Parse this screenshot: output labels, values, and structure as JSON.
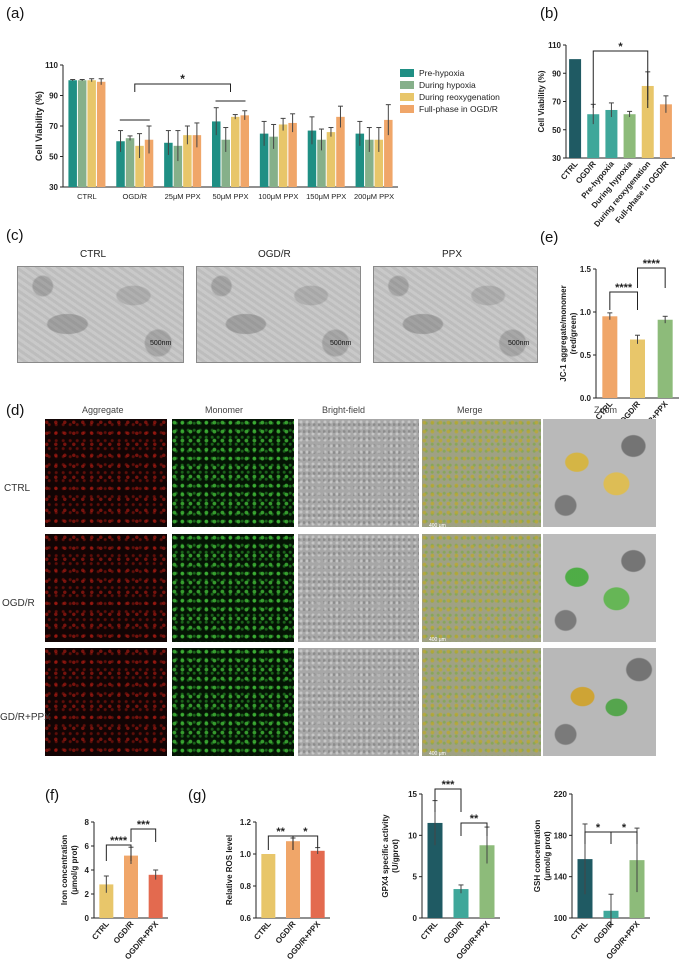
{
  "panel_labels": {
    "a": "(a)",
    "b": "(b)",
    "c": "(c)",
    "d": "(d)",
    "e": "(e)",
    "f": "(f)",
    "g": "(g)"
  },
  "colors": {
    "teal": "#1f8f84",
    "green": "#86b08a",
    "yellow": "#e8c66a",
    "orange": "#f0a669",
    "dark": "#1f5a63",
    "mid": "#3fa79a",
    "salmon": "#e36a4f",
    "lightgreen": "#8dbb7a"
  },
  "tem": {
    "labels": [
      "CTRL",
      "OGD/R",
      "PPX"
    ],
    "scale_bar": "500nm"
  },
  "fluorescence": {
    "columns": [
      "Aggregate",
      "Monomer",
      "Bright-field",
      "Merge",
      "Zoom"
    ],
    "rows": [
      "CTRL",
      "OGD/R",
      "OGD/R+PPX"
    ],
    "row_labels_visible": [
      "CTRL",
      "OGD/R",
      "GD/R+PPX"
    ],
    "scale_bar": "400 μm"
  },
  "chart_data": [
    {
      "id": "a",
      "type": "bar",
      "ylabel": "Cell Viability (%)",
      "ylim": [
        30,
        110
      ],
      "yticks": [
        30,
        50,
        70,
        90,
        110
      ],
      "categories": [
        "CTRL",
        "OGD/R",
        "25μM PPX",
        "50μM PPX",
        "100μM PPX",
        "150μM PPX",
        "200μM PPX"
      ],
      "series": [
        {
          "name": "Pre-hypoxia",
          "values": [
            100,
            60,
            59,
            73,
            65,
            67,
            65
          ],
          "errors": [
            0.5,
            7,
            8,
            9,
            8,
            9,
            8
          ]
        },
        {
          "name": "During hypoxia",
          "values": [
            100,
            62,
            57,
            61,
            63,
            61,
            61
          ],
          "errors": [
            0.5,
            1.5,
            10,
            8,
            8,
            7,
            8
          ]
        },
        {
          "name": "During reoxygenation",
          "values": [
            100,
            57,
            64,
            76,
            71,
            66,
            61
          ],
          "errors": [
            1,
            8,
            6,
            1.5,
            4,
            3,
            8
          ]
        },
        {
          "name": "Full-phase in OGD/R",
          "values": [
            99,
            61,
            64,
            77,
            72,
            76,
            74
          ],
          "errors": [
            2,
            9,
            8,
            3,
            6,
            7,
            10
          ]
        }
      ],
      "significance": [
        {
          "label": "*"
        }
      ]
    },
    {
      "id": "b",
      "type": "bar",
      "ylabel": "Cell Viability (%)",
      "ylim": [
        30,
        110
      ],
      "yticks": [
        30,
        50,
        70,
        90,
        110
      ],
      "categories": [
        "CTRL",
        "OGD/R",
        "Pre-hypoxia",
        "During hypoxia",
        "During reoxygenation",
        "Full-phase in OGD/R"
      ],
      "values": [
        100,
        61,
        64,
        61,
        81,
        68
      ],
      "errors": [
        0,
        7,
        5,
        2,
        10,
        6
      ],
      "significance": [
        {
          "label": "*"
        }
      ]
    },
    {
      "id": "e",
      "type": "bar",
      "ylabel": "JC-1 aggregate/monomer (red/green)",
      "ylim": [
        0,
        1.5
      ],
      "yticks": [
        0.0,
        0.5,
        1.0,
        1.5
      ],
      "categories": [
        "CTRL",
        "OGD/R",
        "OGD/R+PPX"
      ],
      "values": [
        0.95,
        0.68,
        0.91
      ],
      "errors": [
        0.04,
        0.05,
        0.04
      ],
      "significance": [
        {
          "label": "****"
        },
        {
          "label": "****"
        }
      ]
    },
    {
      "id": "f",
      "type": "bar",
      "ylabel": "Iron concentration (μmol/g prot)",
      "ylim": [
        0,
        8
      ],
      "yticks": [
        0,
        2,
        4,
        6,
        8
      ],
      "categories": [
        "CTRL",
        "OGD/R",
        "OGD/R+PPX"
      ],
      "values": [
        2.8,
        5.2,
        3.6
      ],
      "errors": [
        0.7,
        0.7,
        0.4
      ],
      "significance": [
        {
          "label": "****"
        },
        {
          "label": "***"
        }
      ]
    },
    {
      "id": "g1",
      "type": "bar",
      "ylabel": "Relative ROS level",
      "ylim": [
        0.6,
        1.2
      ],
      "yticks": [
        0.6,
        0.8,
        1.0,
        1.2
      ],
      "categories": [
        "CTRL",
        "OGD/R",
        "OGD/R+PPX"
      ],
      "values": [
        1.0,
        1.08,
        1.02
      ],
      "errors": [
        0,
        0.02,
        0.02
      ],
      "significance": [
        {
          "label": "**"
        },
        {
          "label": "*"
        }
      ]
    },
    {
      "id": "g2",
      "type": "bar",
      "ylabel": "GPX4 specific activity (U/gprot)",
      "ylim": [
        0,
        15
      ],
      "yticks": [
        0,
        5,
        10,
        15
      ],
      "categories": [
        "CTRL",
        "OGD/R",
        "OGD/R+PPX"
      ],
      "values": [
        11.5,
        3.5,
        8.8
      ],
      "errors": [
        2.7,
        0.5,
        2.2
      ],
      "significance": [
        {
          "label": "***"
        },
        {
          "label": "**"
        }
      ]
    },
    {
      "id": "g3",
      "type": "bar",
      "ylabel": "GSH concentration (μmol/g prot)",
      "ylim": [
        100,
        220
      ],
      "yticks": [
        100,
        140,
        180,
        220
      ],
      "categories": [
        "CTRL",
        "OGD/R",
        "OGD/R+PPX"
      ],
      "values": [
        157,
        107,
        156
      ],
      "errors": [
        34,
        16,
        31
      ],
      "significance": [
        {
          "label": "*"
        },
        {
          "label": "*"
        }
      ]
    }
  ]
}
